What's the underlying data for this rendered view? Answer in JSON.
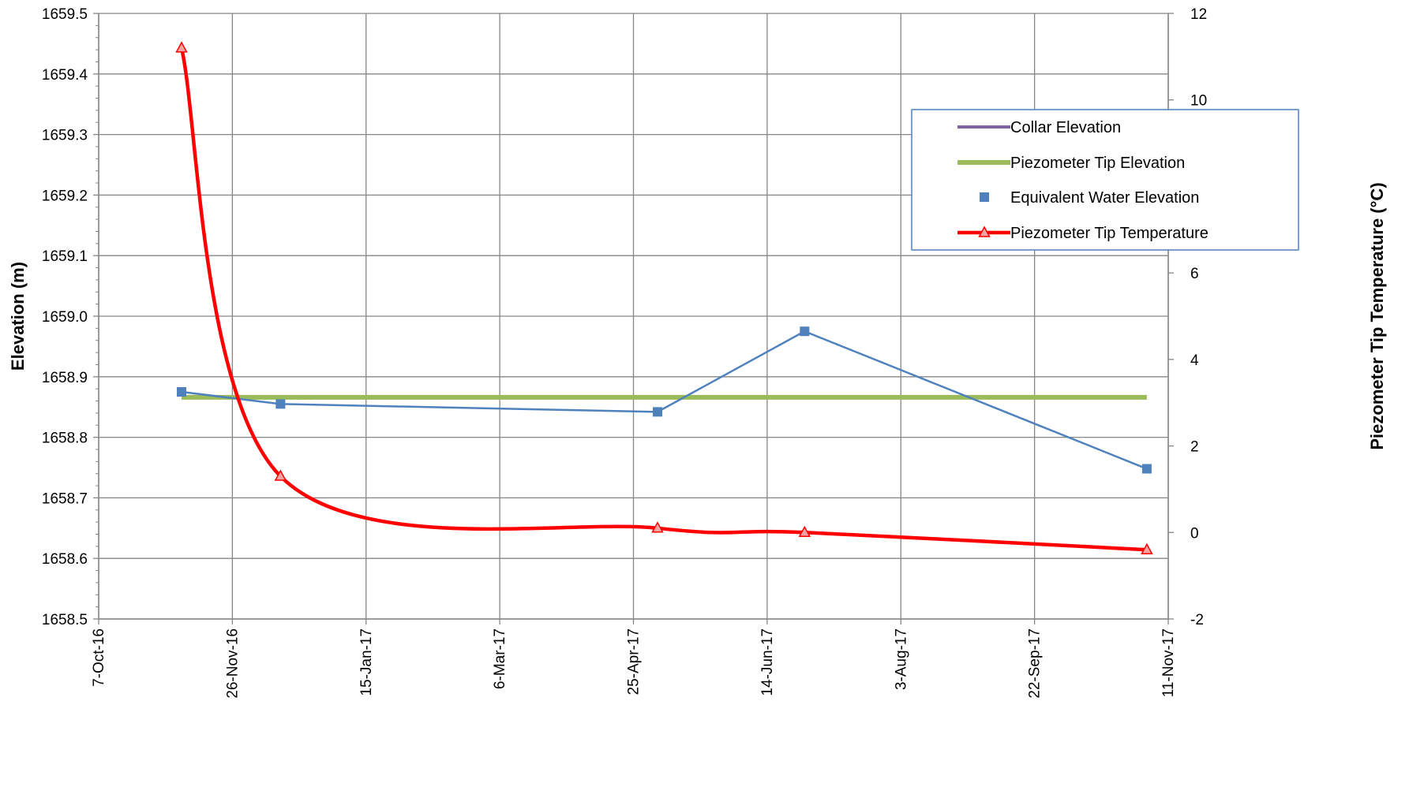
{
  "chart_data": {
    "type": "line",
    "x_axis": {
      "type": "date",
      "range": [
        "2016-10-07",
        "2017-11-11"
      ],
      "tick_dates": [
        "2016-10-07",
        "2016-11-26",
        "2017-01-15",
        "2017-03-06",
        "2017-04-25",
        "2017-06-14",
        "2017-08-03",
        "2017-09-22",
        "2017-11-11"
      ],
      "tick_labels": [
        "7-Oct-16",
        "26-Nov-16",
        "15-Jan-17",
        "6-Mar-17",
        "25-Apr-17",
        "14-Jun-17",
        "3-Aug-17",
        "22-Sep-17",
        "11-Nov-17"
      ]
    },
    "y_axis_left": {
      "label": "Elevation (m)",
      "ylim": [
        1658.5,
        1659.5
      ],
      "ticks": [
        1658.5,
        1658.6,
        1658.7,
        1658.8,
        1658.9,
        1659.0,
        1659.1,
        1659.2,
        1659.3,
        1659.4,
        1659.5
      ],
      "tick_labels": [
        "1658.5",
        "1658.6",
        "1658.7",
        "1658.8",
        "1658.9",
        "1659.0",
        "1659.1",
        "1659.2",
        "1659.3",
        "1659.4",
        "1659.5"
      ]
    },
    "y_axis_right": {
      "label": "Piezometer Tip Temperature (°C)",
      "ylim": [
        -2,
        12
      ],
      "ticks": [
        -2,
        0,
        2,
        4,
        6,
        8,
        10,
        12
      ],
      "tick_labels": [
        "-2",
        "0",
        "2",
        "4",
        "6",
        "8",
        "10",
        "12"
      ]
    },
    "grid": true,
    "legend_position": "top-right",
    "series": [
      {
        "name": "Collar Elevation",
        "axis": "left",
        "style": "line",
        "color": "#8064a2",
        "points": []
      },
      {
        "name": "Piezometer Tip Elevation",
        "axis": "left",
        "style": "line",
        "color": "#9bbb59",
        "points": [
          {
            "x": "2016-11-07",
            "y": 1658.866
          },
          {
            "x": "2017-11-03",
            "y": 1658.866
          }
        ]
      },
      {
        "name": "Equivalent Water Elevation",
        "axis": "left",
        "style": "line-square-markers",
        "color": "#4f81bd",
        "points": [
          {
            "x": "2016-11-07",
            "y": 1658.875
          },
          {
            "x": "2016-12-14",
            "y": 1658.855
          },
          {
            "x": "2017-05-04",
            "y": 1658.842
          },
          {
            "x": "2017-06-28",
            "y": 1658.975
          },
          {
            "x": "2017-11-03",
            "y": 1658.748
          }
        ]
      },
      {
        "name": "Piezometer Tip Temperature",
        "axis": "right",
        "style": "smooth-line-triangle-markers",
        "color": "#ff0000",
        "points": [
          {
            "x": "2016-11-07",
            "y": 11.2
          },
          {
            "x": "2016-12-14",
            "y": 1.3
          },
          {
            "x": "2017-05-04",
            "y": 0.1
          },
          {
            "x": "2017-06-28",
            "y": 0.0
          },
          {
            "x": "2017-11-03",
            "y": -0.4
          }
        ]
      }
    ]
  }
}
